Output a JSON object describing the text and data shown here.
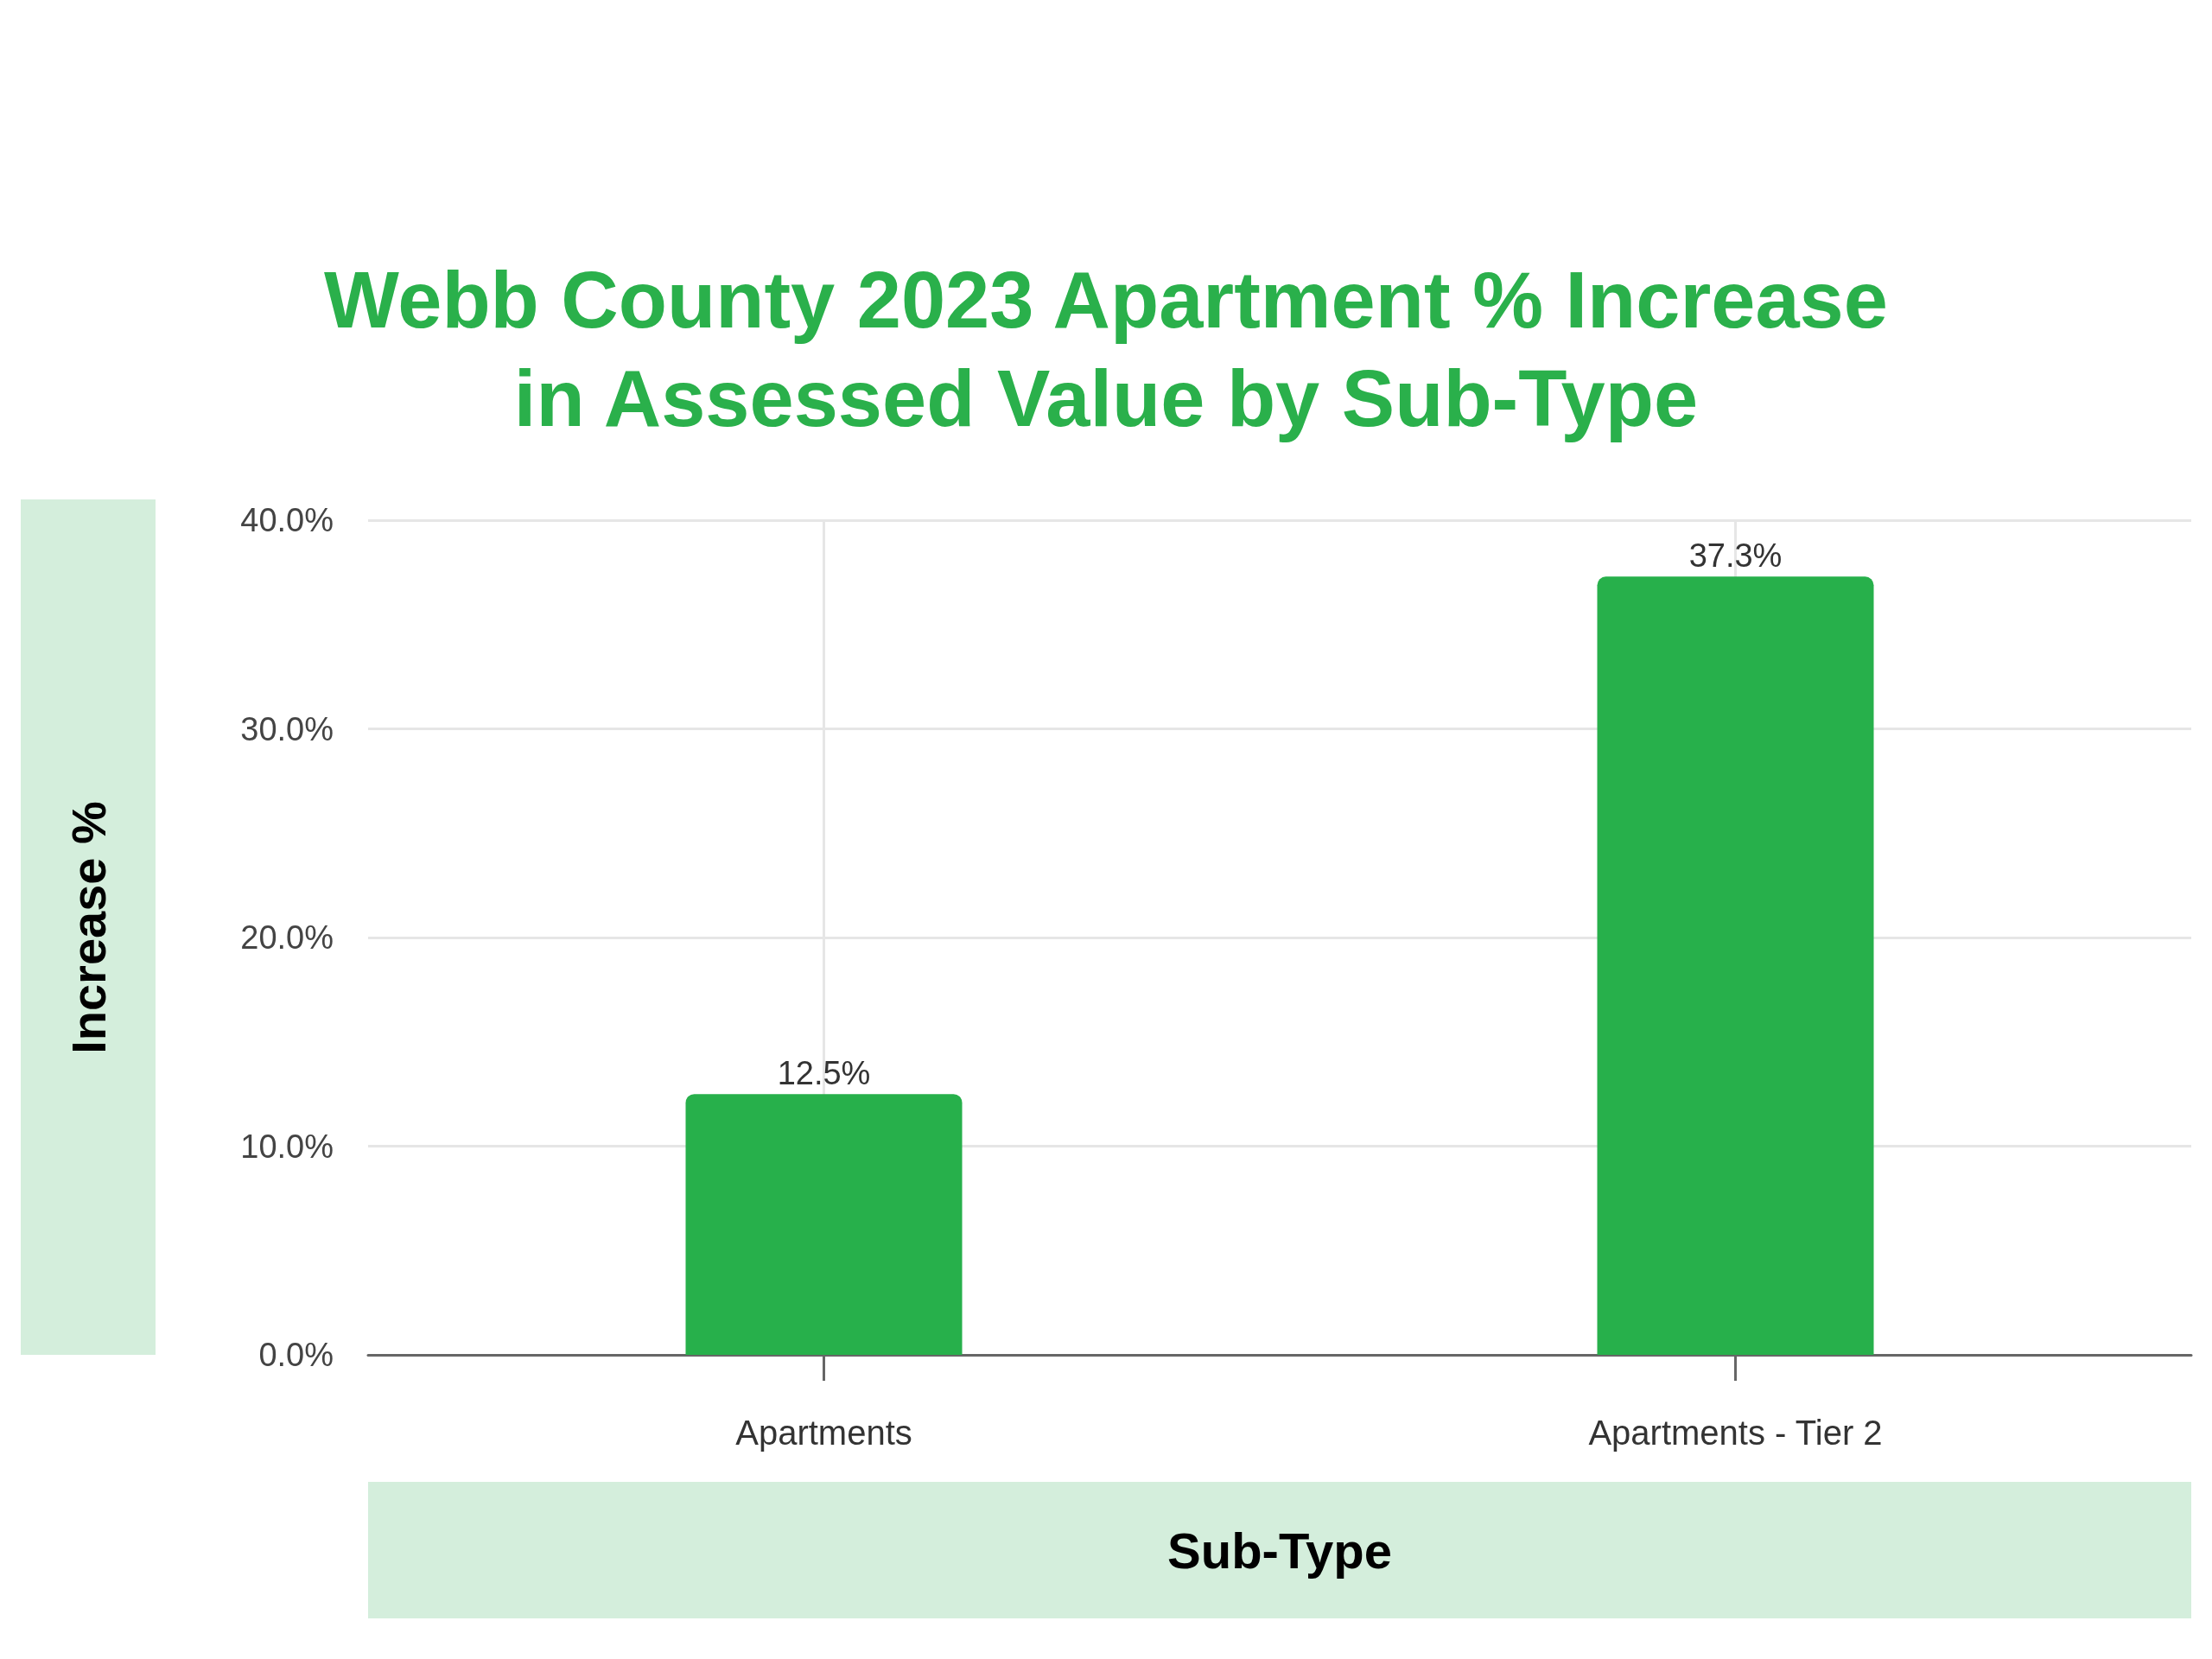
{
  "chart_data": {
    "type": "bar",
    "title": "Webb County 2023 Apartment % Increase in Assessed Value by Sub-Type",
    "xlabel": "Sub-Type",
    "ylabel": "Increase %",
    "categories": [
      "Apartments",
      "Apartments - Tier 2"
    ],
    "values": [
      12.5,
      37.3
    ],
    "value_labels": [
      "12.5%",
      "37.3%"
    ],
    "color": "#27b04b",
    "ylim": [
      0,
      40
    ],
    "yticks": [
      {
        "value": 0,
        "label": "0.0%"
      },
      {
        "value": 10,
        "label": "10.0%"
      },
      {
        "value": 20,
        "label": "20.0%"
      },
      {
        "value": 30,
        "label": "30.0%"
      },
      {
        "value": 40,
        "label": "40.0%"
      }
    ],
    "grid": true
  }
}
